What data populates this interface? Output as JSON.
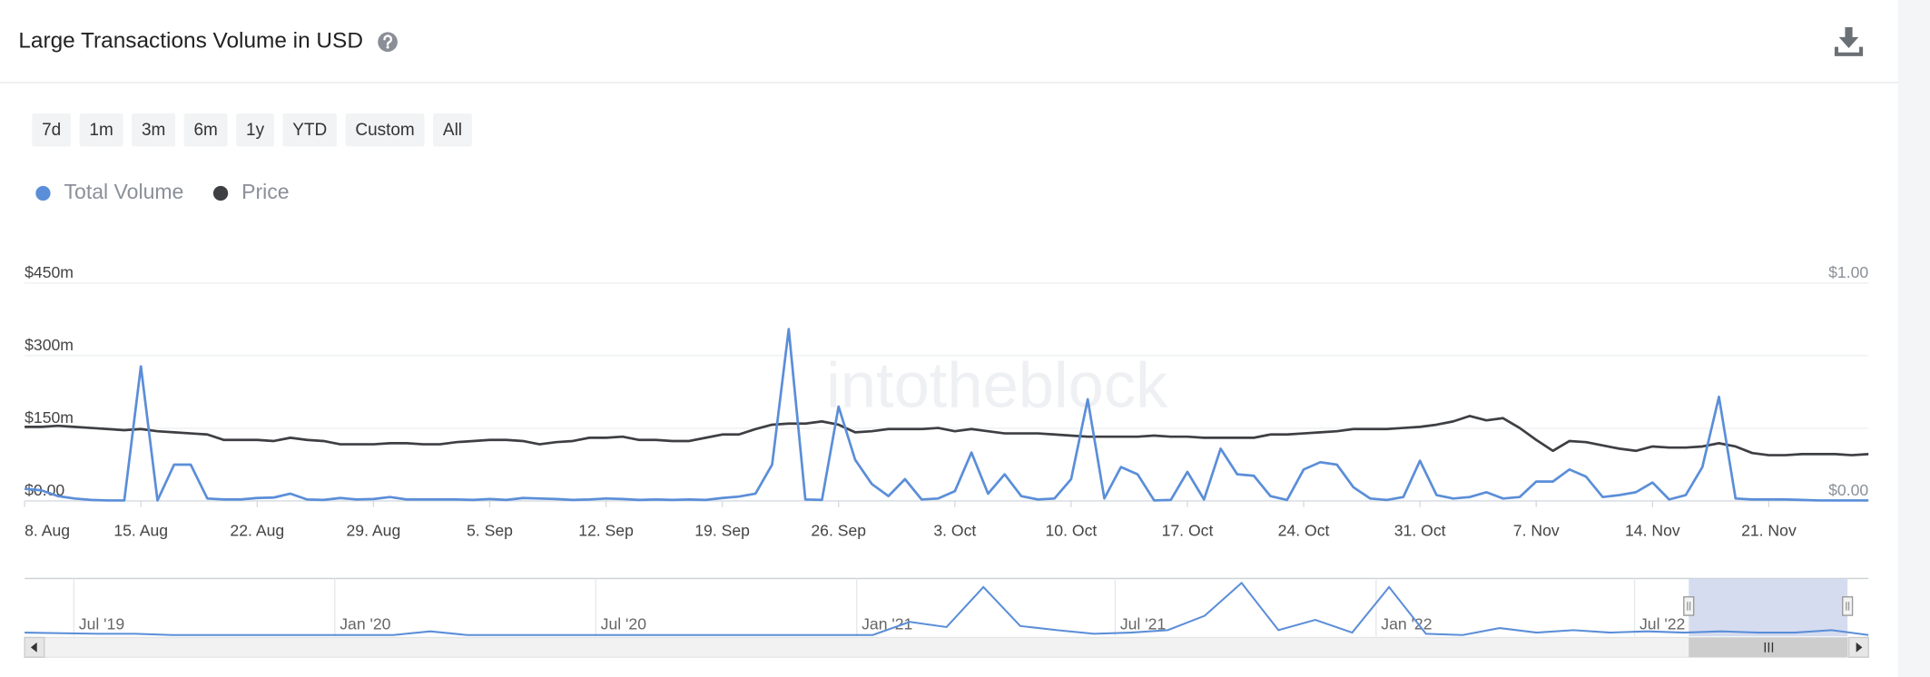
{
  "header": {
    "title": "Large Transactions Volume in USD"
  },
  "range_buttons": [
    "7d",
    "1m",
    "3m",
    "6m",
    "1y",
    "YTD",
    "Custom",
    "All"
  ],
  "chart_data": {
    "type": "line",
    "watermark": "intotheblock",
    "categories": [
      "8. Aug",
      null,
      null,
      null,
      null,
      null,
      null,
      "15. Aug",
      null,
      null,
      null,
      null,
      null,
      null,
      "22. Aug",
      null,
      null,
      null,
      null,
      null,
      null,
      "29. Aug",
      null,
      null,
      null,
      null,
      null,
      null,
      "5. Sep",
      null,
      null,
      null,
      null,
      null,
      null,
      "12. Sep",
      null,
      null,
      null,
      null,
      null,
      null,
      "19. Sep",
      null,
      null,
      null,
      null,
      null,
      null,
      "26. Sep",
      null,
      null,
      null,
      null,
      null,
      null,
      "3. Oct",
      null,
      null,
      null,
      null,
      null,
      null,
      "10. Oct",
      null,
      null,
      null,
      null,
      null,
      null,
      "17. Oct",
      null,
      null,
      null,
      null,
      null,
      null,
      "24. Oct",
      null,
      null,
      null,
      null,
      null,
      null,
      "31. Oct",
      null,
      null,
      null,
      null,
      null,
      null,
      "7. Nov",
      null,
      null,
      null,
      null,
      null,
      null,
      "14. Nov",
      null,
      null,
      null,
      null,
      null,
      null,
      "21. Nov",
      null,
      null,
      null,
      null,
      null,
      null
    ],
    "series": [
      {
        "name": "Total Volume",
        "color": "#5b8ed8",
        "axis": "y",
        "values": [
          25,
          22,
          10,
          5,
          2,
          1,
          1,
          278,
          1,
          75,
          75,
          5,
          3,
          3,
          6,
          7,
          15,
          3,
          2,
          6,
          3,
          4,
          8,
          3,
          3,
          3,
          3,
          2,
          4,
          2,
          6,
          5,
          4,
          2,
          3,
          5,
          4,
          2,
          3,
          2,
          3,
          2,
          6,
          9,
          15,
          75,
          355,
          3,
          2,
          195,
          85,
          35,
          10,
          45,
          3,
          5,
          20,
          100,
          15,
          55,
          10,
          3,
          5,
          45,
          210,
          5,
          70,
          55,
          1,
          2,
          60,
          3,
          108,
          55,
          52,
          10,
          2,
          65,
          80,
          75,
          28,
          5,
          2,
          8,
          83,
          12,
          5,
          8,
          18,
          5,
          8,
          40,
          40,
          65,
          50,
          8,
          12,
          18,
          38,
          3,
          12,
          70,
          215,
          5,
          3,
          3,
          3,
          2,
          1,
          1,
          1,
          1
        ]
      },
      {
        "name": "Price",
        "color": "#3d3f43",
        "axis": "y2",
        "values": [
          0.34,
          0.34,
          0.345,
          0.34,
          0.335,
          0.33,
          0.325,
          0.33,
          0.32,
          0.315,
          0.31,
          0.305,
          0.28,
          0.28,
          0.28,
          0.275,
          0.29,
          0.28,
          0.275,
          0.26,
          0.26,
          0.26,
          0.265,
          0.265,
          0.26,
          0.26,
          0.27,
          0.275,
          0.28,
          0.28,
          0.275,
          0.26,
          0.27,
          0.275,
          0.29,
          0.29,
          0.295,
          0.28,
          0.28,
          0.275,
          0.275,
          0.29,
          0.305,
          0.305,
          0.33,
          0.35,
          0.355,
          0.355,
          0.365,
          0.35,
          0.315,
          0.32,
          0.33,
          0.33,
          0.33,
          0.335,
          0.32,
          0.33,
          0.32,
          0.31,
          0.31,
          0.31,
          0.305,
          0.3,
          0.295,
          0.295,
          0.295,
          0.295,
          0.3,
          0.295,
          0.295,
          0.29,
          0.29,
          0.29,
          0.29,
          0.305,
          0.305,
          0.31,
          0.315,
          0.32,
          0.33,
          0.33,
          0.33,
          0.335,
          0.34,
          0.35,
          0.365,
          0.39,
          0.37,
          0.38,
          0.335,
          0.28,
          0.23,
          0.275,
          0.27,
          0.255,
          0.24,
          0.23,
          0.25,
          0.245,
          0.245,
          0.25,
          0.265,
          0.25,
          0.22,
          0.21,
          0.21,
          0.215,
          0.215,
          0.215,
          0.21,
          0.215
        ]
      }
    ],
    "ylim": [
      0,
      450
    ],
    "yticks": [
      {
        "value": 0,
        "label": "$0.00"
      },
      {
        "value": 150,
        "label": "$150m"
      },
      {
        "value": 300,
        "label": "$300m"
      },
      {
        "value": 450,
        "label": "$450m"
      }
    ],
    "y2lim": [
      0,
      1
    ],
    "y2ticks": [
      {
        "value": 0,
        "label": "$0.00"
      },
      {
        "value": 1,
        "label": "$1.00"
      }
    ],
    "grid": true,
    "navigator": {
      "labels": [
        "Jul '19",
        "Jan '20",
        "Jul '20",
        "Jan '21",
        "Jul '21",
        "Jan '22",
        "Jul '22"
      ],
      "ylim": [
        0,
        2700
      ],
      "values": [
        180,
        150,
        120,
        120,
        60,
        60,
        60,
        60,
        60,
        60,
        60,
        240,
        60,
        60,
        60,
        60,
        60,
        60,
        60,
        60,
        60,
        60,
        60,
        60,
        700,
        450,
        2400,
        500,
        300,
        120,
        180,
        300,
        1000,
        2600,
        300,
        800,
        180,
        2400,
        120,
        60,
        400,
        180,
        300,
        180,
        240,
        180,
        240,
        180,
        180,
        300,
        60
      ]
    }
  }
}
